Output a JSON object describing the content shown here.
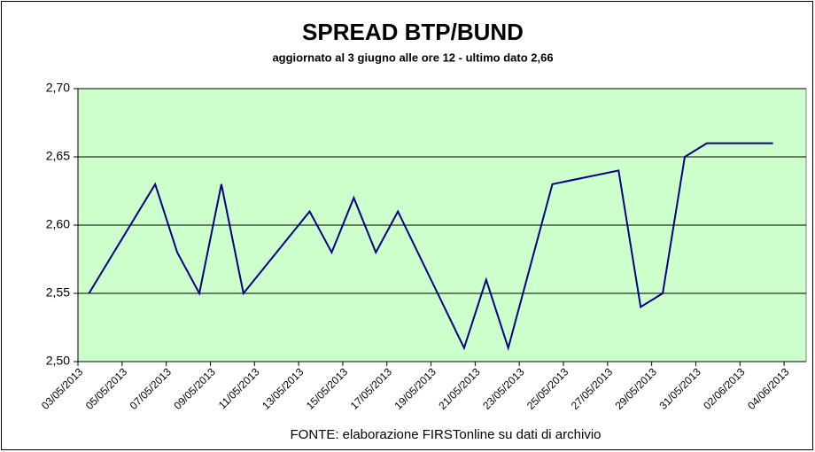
{
  "chart_data": {
    "type": "line",
    "title": "SPREAD  BTP/BUND",
    "subtitle": "aggiornato al 3 giugno alle ore 12 - ultimo dato 2,66",
    "footer": "FONTE: elaborazione FIRSTonline su dati di archivio",
    "x": [
      "03/05/2013",
      "06/05/2013",
      "07/05/2013",
      "08/05/2013",
      "09/05/2013",
      "10/05/2013",
      "13/05/2013",
      "14/05/2013",
      "15/05/2013",
      "16/05/2013",
      "17/05/2013",
      "20/05/2013",
      "21/05/2013",
      "22/05/2013",
      "24/05/2013",
      "27/05/2013",
      "28/05/2013",
      "29/05/2013",
      "30/05/2013",
      "31/05/2013",
      "03/06/2013"
    ],
    "series": [
      {
        "color": "#000080",
        "values": [
          2.55,
          2.63,
          2.58,
          2.55,
          2.63,
          2.55,
          2.61,
          2.58,
          2.62,
          2.58,
          2.61,
          2.51,
          2.56,
          2.51,
          2.63,
          2.64,
          2.54,
          2.55,
          2.65,
          2.66,
          2.66
        ]
      }
    ],
    "xlim": [
      "03/05/2013",
      "05/06/2013"
    ],
    "xticks": [
      "03/05/2013",
      "05/05/2013",
      "07/05/2013",
      "09/05/2013",
      "11/05/2013",
      "13/05/2013",
      "15/05/2013",
      "17/05/2013",
      "19/05/2013",
      "21/05/2013",
      "23/05/2013",
      "25/05/2013",
      "27/05/2013",
      "29/05/2013",
      "31/05/2013",
      "02/06/2013",
      "04/06/2013"
    ],
    "ylim": [
      2.5,
      2.7
    ],
    "yticks": [
      {
        "value": 2.5,
        "label": "2,50"
      },
      {
        "value": 2.55,
        "label": "2,55"
      },
      {
        "value": 2.6,
        "label": "2,60"
      },
      {
        "value": 2.65,
        "label": "2,65"
      },
      {
        "value": 2.7,
        "label": "2,70"
      }
    ],
    "grid": true,
    "plot_color": "#ccffcc"
  }
}
